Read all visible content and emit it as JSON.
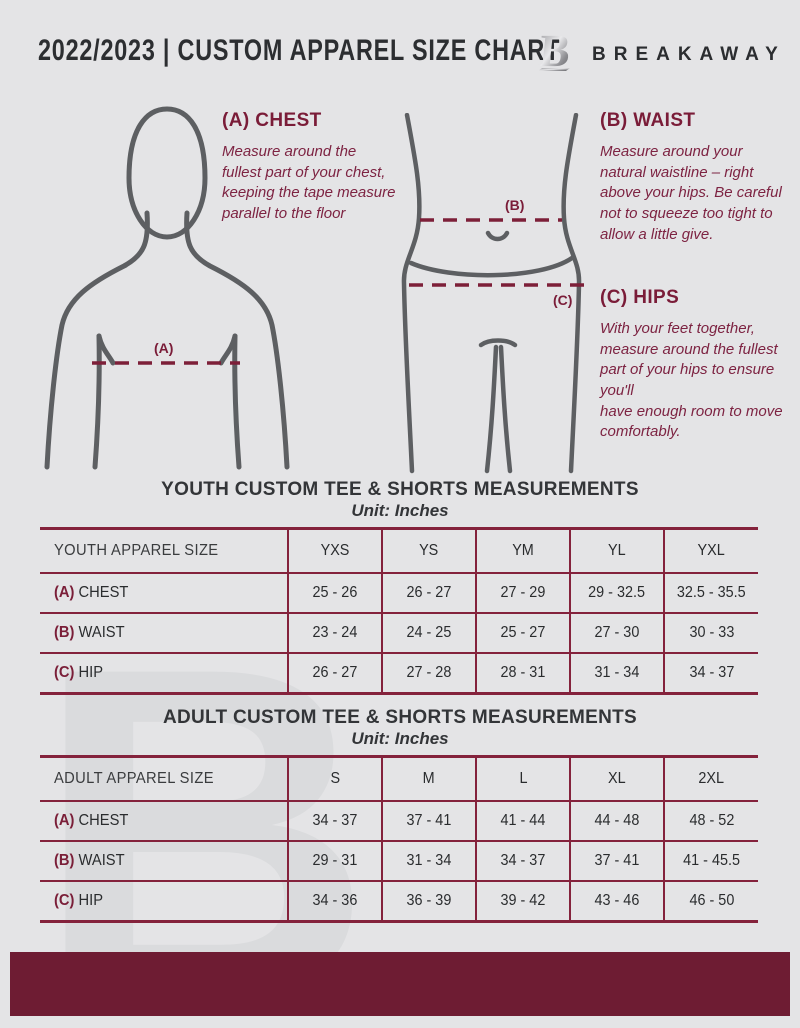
{
  "colors": {
    "background": "#e4e4e6",
    "accent_maroon": "#7a1c38",
    "table_line": "#84223c",
    "footer_bar": "#6e1c33",
    "figure_outline": "#5d5f62",
    "watermark": "#dadbdd"
  },
  "header": {
    "title": "2022/2023  |  CUSTOM APPAREL SIZE CHART",
    "brand": "BREAKAWAY",
    "logo_letter": "B"
  },
  "measure_guide": {
    "chest": {
      "heading": "(A) CHEST",
      "body": "Measure around the fullest part of your chest, keeping the tape measure parallel to the floor",
      "marker": "(A)"
    },
    "waist": {
      "heading": "(B) WAIST",
      "body": "Measure around your natural waistline – right above your hips. Be careful not to squeeze too tight to allow a little give.",
      "marker": "(B)"
    },
    "hips": {
      "heading": "(C) HIPS",
      "body": "With your feet together, measure around the fullest part of your hips to ensure you'll\nhave enough room to move comfortably.",
      "marker": "(C)"
    }
  },
  "youth_table": {
    "title": "YOUTH CUSTOM TEE & SHORTS MEASUREMENTS",
    "unit": "Unit: Inches",
    "header": "YOUTH APPAREL SIZE",
    "sizes": [
      "YXS",
      "YS",
      "YM",
      "YL",
      "YXL"
    ],
    "rows": [
      {
        "prefix": "(A)",
        "label": "CHEST",
        "values": [
          "25 - 26",
          "26 - 27",
          "27 - 29",
          "29 - 32.5",
          "32.5 - 35.5"
        ]
      },
      {
        "prefix": "(B)",
        "label": "WAIST",
        "values": [
          "23 - 24",
          "24 - 25",
          "25 - 27",
          "27 - 30",
          "30 - 33"
        ]
      },
      {
        "prefix": "(C)",
        "label": "HIP",
        "values": [
          "26 - 27",
          "27 - 28",
          "28 - 31",
          "31 - 34",
          "34 - 37"
        ]
      }
    ]
  },
  "adult_table": {
    "title": "ADULT CUSTOM TEE & SHORTS MEASUREMENTS",
    "unit": "Unit: Inches",
    "header": "ADULT APPAREL SIZE",
    "sizes": [
      "S",
      "M",
      "L",
      "XL",
      "2XL"
    ],
    "rows": [
      {
        "prefix": "(A)",
        "label": "CHEST",
        "values": [
          "34 - 37",
          "37 - 41",
          "41 - 44",
          "44 - 48",
          "48 - 52"
        ]
      },
      {
        "prefix": "(B)",
        "label": "WAIST",
        "values": [
          "29 - 31",
          "31 - 34",
          "34 - 37",
          "37 - 41",
          "41 - 45.5"
        ]
      },
      {
        "prefix": "(C)",
        "label": "HIP",
        "values": [
          "34 - 36",
          "36 - 39",
          "39 - 42",
          "43 - 46",
          "46 - 50"
        ]
      }
    ]
  }
}
